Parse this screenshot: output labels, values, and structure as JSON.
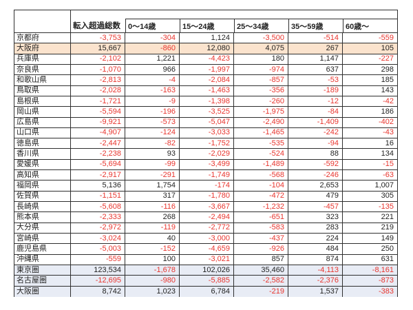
{
  "colors": {
    "negative_text": "#e8352e",
    "positive_text": "#1f1f1f",
    "border": "#2e2e2e",
    "highlight_orange": "#fbe3cd",
    "highlight_blue": "#e8ecf5"
  },
  "chart_data": {
    "type": "table",
    "columns": [
      "",
      "転入超過総数",
      "0〜14歳",
      "15〜24歳",
      "25〜34歳",
      "35〜59歳",
      "60歳〜"
    ],
    "rows": [
      {
        "label": "京都府",
        "values": [
          "-3,753",
          "-304",
          "1,124",
          "-3,500",
          "-514",
          "-559"
        ],
        "highlight": "none"
      },
      {
        "label": "大阪府",
        "values": [
          "15,667",
          "-860",
          "12,080",
          "4,075",
          "267",
          "105"
        ],
        "highlight": "orange"
      },
      {
        "label": "兵庫県",
        "values": [
          "-2,102",
          "1,221",
          "-4,423",
          "180",
          "1,147",
          "-227"
        ],
        "highlight": "none"
      },
      {
        "label": "奈良県",
        "values": [
          "-1,070",
          "966",
          "-1,997",
          "-974",
          "637",
          "298"
        ],
        "highlight": "none"
      },
      {
        "label": "和歌山県",
        "values": [
          "-2,813",
          "-4",
          "-2,084",
          "-857",
          "-53",
          "185"
        ],
        "highlight": "none"
      },
      {
        "label": "鳥取県",
        "values": [
          "-2,028",
          "-163",
          "-1,463",
          "-356",
          "-189",
          "143"
        ],
        "highlight": "none"
      },
      {
        "label": "島根県",
        "values": [
          "-1,721",
          "-9",
          "-1,398",
          "-260",
          "-12",
          "-42"
        ],
        "highlight": "none"
      },
      {
        "label": "岡山県",
        "values": [
          "-5,594",
          "-196",
          "-3,525",
          "-1,975",
          "-84",
          "186"
        ],
        "highlight": "none"
      },
      {
        "label": "広島県",
        "values": [
          "-9,921",
          "-573",
          "-5,047",
          "-2,490",
          "-1,409",
          "-402"
        ],
        "highlight": "none"
      },
      {
        "label": "山口県",
        "values": [
          "-4,907",
          "-124",
          "-3,033",
          "-1,465",
          "-242",
          "-43"
        ],
        "highlight": "none"
      },
      {
        "label": "徳島県",
        "values": [
          "-2,447",
          "-82",
          "-1,752",
          "-535",
          "-94",
          "16"
        ],
        "highlight": "none"
      },
      {
        "label": "香川県",
        "values": [
          "-2,238",
          "93",
          "-2,029",
          "-524",
          "88",
          "134"
        ],
        "highlight": "none"
      },
      {
        "label": "愛媛県",
        "values": [
          "-5,694",
          "-99",
          "-3,499",
          "-1,489",
          "-592",
          "-15"
        ],
        "highlight": "none"
      },
      {
        "label": "高知県",
        "values": [
          "-2,917",
          "-291",
          "-1,749",
          "-568",
          "-246",
          "-63"
        ],
        "highlight": "none"
      },
      {
        "label": "福岡県",
        "values": [
          "5,136",
          "1,754",
          "-174",
          "-104",
          "2,653",
          "1,007"
        ],
        "highlight": "none"
      },
      {
        "label": "佐賀県",
        "values": [
          "-1,151",
          "317",
          "-1,780",
          "-472",
          "479",
          "305"
        ],
        "highlight": "none"
      },
      {
        "label": "長崎県",
        "values": [
          "-5,608",
          "-116",
          "-3,667",
          "-1,232",
          "-457",
          "-135"
        ],
        "highlight": "none"
      },
      {
        "label": "熊本県",
        "values": [
          "-2,333",
          "268",
          "-2,494",
          "-651",
          "323",
          "221"
        ],
        "highlight": "none"
      },
      {
        "label": "大分県",
        "values": [
          "-2,972",
          "-119",
          "-2,772",
          "-583",
          "283",
          "219"
        ],
        "highlight": "none"
      },
      {
        "label": "宮崎県",
        "values": [
          "-3,024",
          "40",
          "-3,000",
          "-437",
          "224",
          "149"
        ],
        "highlight": "none"
      },
      {
        "label": "鹿児島県",
        "values": [
          "-5,003",
          "-152",
          "-4,659",
          "-926",
          "484",
          "250"
        ],
        "highlight": "none"
      },
      {
        "label": "沖縄県",
        "values": [
          "-559",
          "100",
          "-3,021",
          "857",
          "874",
          "631"
        ],
        "highlight": "none"
      },
      {
        "label": "東京圏",
        "values": [
          "123,534",
          "-1,678",
          "102,026",
          "35,460",
          "-4,113",
          "-8,161"
        ],
        "highlight": "blue"
      },
      {
        "label": "名古屋圏",
        "values": [
          "-12,695",
          "-980",
          "-5,885",
          "-2,582",
          "-2,376",
          "-873"
        ],
        "highlight": "blue"
      },
      {
        "label": "大阪圏",
        "values": [
          "8,742",
          "1,023",
          "6,784",
          "-219",
          "1,537",
          "-383"
        ],
        "highlight": "blue"
      }
    ]
  }
}
